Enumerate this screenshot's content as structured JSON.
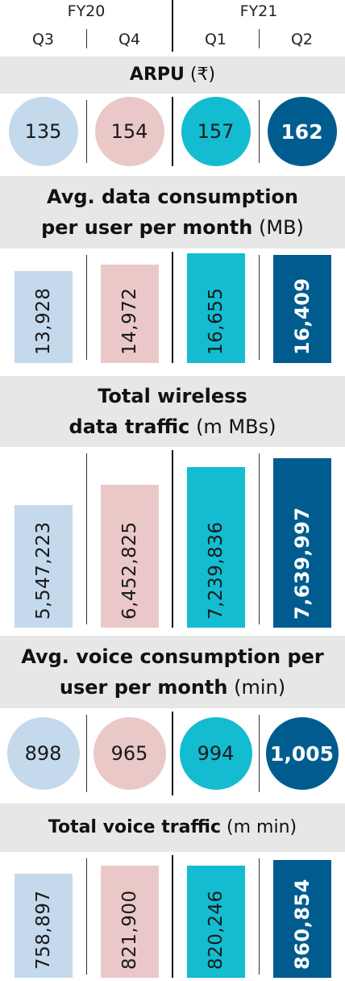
{
  "header": {
    "fiscal_years": [
      {
        "label": "FY20",
        "quarters": [
          "Q3",
          "Q4"
        ]
      },
      {
        "label": "FY21",
        "quarters": [
          "Q1",
          "Q2"
        ]
      }
    ]
  },
  "colors": {
    "q3": "#c4d9ec",
    "q4": "#ebc8c8",
    "q1": "#13bcd1",
    "q2": "#005c8f",
    "band": "#e7e7e7"
  },
  "chart_data": [
    {
      "type": "table",
      "id": "arpu",
      "title_bold": "ARPU",
      "title_unit": "(₹)",
      "categories": [
        "Q3",
        "Q4",
        "Q1",
        "Q2"
      ],
      "values": [
        135,
        154,
        157,
        162
      ],
      "value_labels": [
        "135",
        "154",
        "157",
        "162"
      ],
      "mark": "circle"
    },
    {
      "type": "bar",
      "id": "data_per_user",
      "title_bold": "Avg. data consumption per user per month",
      "title_bold_lines": [
        "Avg. data consumption",
        "per user per month"
      ],
      "title_unit": "(MB)",
      "categories": [
        "Q3",
        "Q4",
        "Q1",
        "Q2"
      ],
      "values": [
        13928,
        14972,
        16655,
        16409
      ],
      "value_labels": [
        "13,928",
        "14,972",
        "16,655",
        "16,409"
      ],
      "ylim": [
        0,
        16655
      ]
    },
    {
      "type": "bar",
      "id": "wireless_data",
      "title_bold": "Total wireless data traffic",
      "title_bold_lines": [
        "Total wireless",
        "data traffic"
      ],
      "title_unit": "(m MBs)",
      "categories": [
        "Q3",
        "Q4",
        "Q1",
        "Q2"
      ],
      "values": [
        5547223,
        6452825,
        7239836,
        7639997
      ],
      "value_labels": [
        "5,547,223",
        "6,452,825",
        "7,239,836",
        "7,639,997"
      ],
      "ylim": [
        0,
        7639997
      ]
    },
    {
      "type": "table",
      "id": "voice_per_user",
      "title_bold": "Avg. voice consumption per user per month",
      "title_bold_lines": [
        "Avg. voice consumption per",
        "user per month"
      ],
      "title_unit": "(min)",
      "categories": [
        "Q3",
        "Q4",
        "Q1",
        "Q2"
      ],
      "values": [
        898,
        965,
        994,
        1005
      ],
      "value_labels": [
        "898",
        "965",
        "994",
        "1,005"
      ],
      "mark": "circle"
    },
    {
      "type": "bar",
      "id": "voice_traffic",
      "title_bold": "Total voice traffic",
      "title_unit": "(m min)",
      "categories": [
        "Q3",
        "Q4",
        "Q1",
        "Q2"
      ],
      "values": [
        758897,
        821900,
        820246,
        860854
      ],
      "value_labels": [
        "758,897",
        "821,900",
        "820,246",
        "860,854"
      ],
      "ylim": [
        0,
        860854
      ]
    }
  ]
}
